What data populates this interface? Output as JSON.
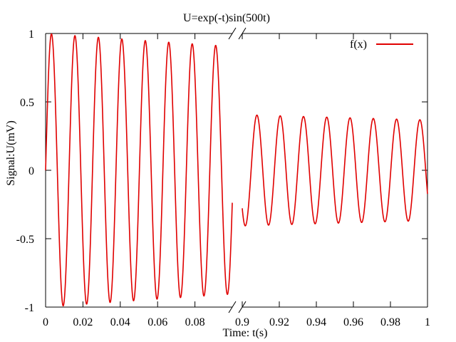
{
  "chart_data": {
    "type": "line",
    "title": "U=exp(-t)sin(500t)",
    "xlabel": "Time: t(s)",
    "ylabel": "Signal:U(mV)",
    "ylim": [
      -1,
      1
    ],
    "y_ticks": [
      "1",
      "0.5",
      "0",
      "-0.5",
      "-1"
    ],
    "broken_x_axis": true,
    "x_segments": [
      {
        "xlim": [
          0,
          0.1
        ],
        "tick_values": [
          0,
          0.02,
          0.04,
          0.06,
          0.08
        ],
        "tick_labels": [
          "0",
          "0.02",
          "0.04",
          "0.06",
          "0.08"
        ]
      },
      {
        "xlim": [
          0.9,
          1.0
        ],
        "tick_values": [
          0.9,
          0.92,
          0.94,
          0.96,
          0.98,
          1.0
        ],
        "tick_labels": [
          "0.9",
          "0.92",
          "0.94",
          "0.96",
          "0.98",
          "1"
        ]
      }
    ],
    "series": [
      {
        "name": "f(x)",
        "function": "exp(-t)*sin(500*t)",
        "color": "#e00000"
      }
    ],
    "legend_position": "top-right",
    "grid": false
  }
}
